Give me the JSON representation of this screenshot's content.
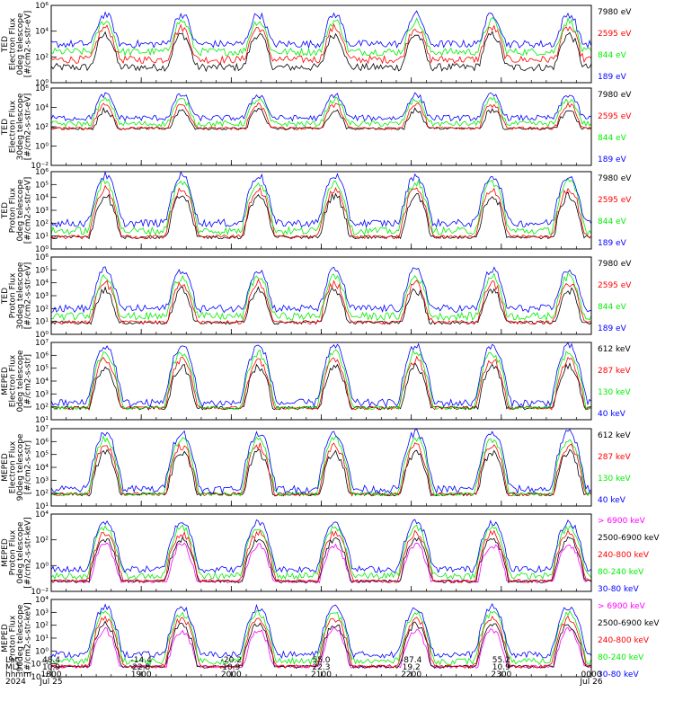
{
  "colors": {
    "black": "#000000",
    "red": "#ff0000",
    "green": "#00ee00",
    "blue": "#0000ff",
    "magenta": "#ff00ff"
  },
  "chart_data": [
    {
      "type": "line",
      "ylabel": [
        "TED",
        "Electron Flux",
        "0deg telescope",
        "[#/cm2-s-str-eV]"
      ],
      "yscale": "log",
      "ylim": [
        1,
        1000000
      ],
      "yticks": [
        "10⁰",
        "10²",
        "10⁴",
        "10⁶"
      ],
      "legend_placement": "right",
      "series": [
        {
          "name": "7980 eV",
          "color": "black"
        },
        {
          "name": "2595 eV",
          "color": "red"
        },
        {
          "name": "844 eV",
          "color": "green"
        },
        {
          "name": "189 eV",
          "color": "blue"
        }
      ],
      "profile": {
        "floor": 3,
        "base_blue": 1000,
        "peak": 200000,
        "gaps": true
      }
    },
    {
      "type": "line",
      "ylabel": [
        "TED",
        "Electron Flux",
        "30deg telescope",
        "[#/cm2-s-str-eV]"
      ],
      "yscale": "log",
      "ylim": [
        0.01,
        1000000
      ],
      "yticks": [
        "10⁻²",
        "10⁰",
        "10²",
        "10⁴",
        "10⁶"
      ],
      "legend_placement": "right",
      "series": [
        {
          "name": "7980 eV",
          "color": "black"
        },
        {
          "name": "2595 eV",
          "color": "red"
        },
        {
          "name": "844 eV",
          "color": "green"
        },
        {
          "name": "189 eV",
          "color": "blue"
        }
      ],
      "profile": {
        "floor": 80,
        "base_blue": 800,
        "peak": 200000,
        "gaps": true
      }
    },
    {
      "type": "line",
      "ylabel": [
        "TED",
        "Proton Flux",
        "0deg telescope",
        "[#/cm2-s-str-eV]"
      ],
      "yscale": "log",
      "ylim": [
        1,
        1000000
      ],
      "yticks": [
        "10⁰",
        "10¹",
        "10²",
        "10³",
        "10⁴",
        "10⁵",
        "10⁶"
      ],
      "legend_placement": "right",
      "series": [
        {
          "name": "7980 eV",
          "color": "black"
        },
        {
          "name": "2595 eV",
          "color": "red"
        },
        {
          "name": "844 eV",
          "color": "green"
        },
        {
          "name": "189 eV",
          "color": "blue"
        }
      ],
      "profile": {
        "floor": 10,
        "base_blue": 100,
        "peak": 500000,
        "gaps": false
      }
    },
    {
      "type": "line",
      "ylabel": [
        "TED",
        "Proton Flux",
        "30deg telescope",
        "[#/cm2-s-str-eV]"
      ],
      "yscale": "log",
      "ylim": [
        1,
        1000000
      ],
      "yticks": [
        "10⁰",
        "10¹",
        "10²",
        "10³",
        "10⁴",
        "10⁵",
        "10⁶"
      ],
      "legend_placement": "right",
      "series": [
        {
          "name": "7980 eV",
          "color": "black"
        },
        {
          "name": "2595 eV",
          "color": "red"
        },
        {
          "name": "844 eV",
          "color": "green"
        },
        {
          "name": "189 eV",
          "color": "blue"
        }
      ],
      "profile": {
        "floor": 10,
        "base_blue": 100,
        "peak": 100000,
        "gaps": false
      }
    },
    {
      "type": "line",
      "ylabel": [
        "MEPED",
        "Electron Flux",
        "0deg telescope",
        "[#/cm2-s-str]"
      ],
      "yscale": "log",
      "ylim": [
        10,
        10000000
      ],
      "yticks": [
        "10¹",
        "10²",
        "10³",
        "10⁴",
        "10⁵",
        "10⁶",
        "10⁷"
      ],
      "legend_placement": "right",
      "series": [
        {
          "name": "612 keV",
          "color": "black"
        },
        {
          "name": "287 keV",
          "color": "red"
        },
        {
          "name": "130 keV",
          "color": "green"
        },
        {
          "name": "40 keV",
          "color": "blue"
        }
      ],
      "profile": {
        "floor": 100,
        "base_blue": 200,
        "peak": 5000000,
        "gaps": false
      }
    },
    {
      "type": "line",
      "ylabel": [
        "MEPED",
        "Electron Flux",
        "90deg telescope",
        "[#/cm2-s-str]"
      ],
      "yscale": "log",
      "ylim": [
        10,
        10000000
      ],
      "yticks": [
        "10¹",
        "10²",
        "10³",
        "10⁴",
        "10⁵",
        "10⁶",
        "10⁷"
      ],
      "legend_placement": "right",
      "series": [
        {
          "name": "612 keV",
          "color": "black"
        },
        {
          "name": "287 keV",
          "color": "red"
        },
        {
          "name": "130 keV",
          "color": "green"
        },
        {
          "name": "40 keV",
          "color": "blue"
        }
      ],
      "profile": {
        "floor": 100,
        "base_blue": 200,
        "peak": 5000000,
        "gaps": false
      }
    },
    {
      "type": "line",
      "ylabel": [
        "MEPED",
        "Proton Flux",
        "0deg telescope",
        "[#/cm2-s-str-keV]"
      ],
      "yscale": "log",
      "ylim": [
        0.01,
        100000
      ],
      "yticks": [
        "10⁻²",
        "10⁰",
        "10²",
        "10⁴"
      ],
      "legend_placement": "right",
      "series": [
        {
          "name": "> 6900 keV",
          "color": "magenta"
        },
        {
          "name": "2500-6900 keV",
          "color": "black"
        },
        {
          "name": "240-800 keV",
          "color": "red"
        },
        {
          "name": "80-240 keV",
          "color": "green"
        },
        {
          "name": "30-80 keV",
          "color": "blue"
        }
      ],
      "profile": {
        "floor": 0.1,
        "base_blue": 1,
        "peak": 20000,
        "gaps": false
      }
    },
    {
      "type": "line",
      "ylabel": [
        "MEPED",
        "Proton Flux",
        "90deg telescope",
        "[#/cm2-s-str-keV]"
      ],
      "yscale": "log",
      "ylim": [
        0.01,
        100000
      ],
      "yticks": [
        "10⁻²",
        "10⁻¹",
        "10⁰",
        "10¹",
        "10²",
        "10³",
        "10⁴"
      ],
      "legend_placement": "right",
      "series": [
        {
          "name": "> 6900 keV",
          "color": "magenta"
        },
        {
          "name": "2500-6900 keV",
          "color": "black"
        },
        {
          "name": "240-800 keV",
          "color": "red"
        },
        {
          "name": "80-240 keV",
          "color": "green"
        },
        {
          "name": "30-80 keV",
          "color": "blue"
        }
      ],
      "profile": {
        "floor": 0.1,
        "base_blue": 1,
        "peak": 20000,
        "gaps": false
      }
    }
  ],
  "x_axis": {
    "row_labels": [
      "Lat",
      "MLT",
      "hhmm",
      "2024"
    ],
    "ticks": [
      {
        "lat": "48.4",
        "mlt": "10.9",
        "hhmm": "1800",
        "date": "Jul 25"
      },
      {
        "lat": "-14.4",
        "mlt": "22.8",
        "hhmm": "1900",
        "date": ""
      },
      {
        "lat": "-20.2",
        "mlt": "10.9",
        "hhmm": "2000",
        "date": ""
      },
      {
        "lat": "55.0",
        "mlt": "22.3",
        "hhmm": "2100",
        "date": ""
      },
      {
        "lat": "-87.4",
        "mlt": "19.2",
        "hhmm": "2200",
        "date": ""
      },
      {
        "lat": "55.2",
        "mlt": "10.9",
        "hhmm": "2300",
        "date": ""
      },
      {
        "lat": "",
        "mlt": "",
        "hhmm": "0000",
        "date": "Jul 26"
      }
    ],
    "range_hours": [
      18,
      24
    ],
    "passes_hours": [
      18.6,
      19.45,
      20.3,
      21.15,
      22.05,
      22.9,
      23.75
    ]
  }
}
